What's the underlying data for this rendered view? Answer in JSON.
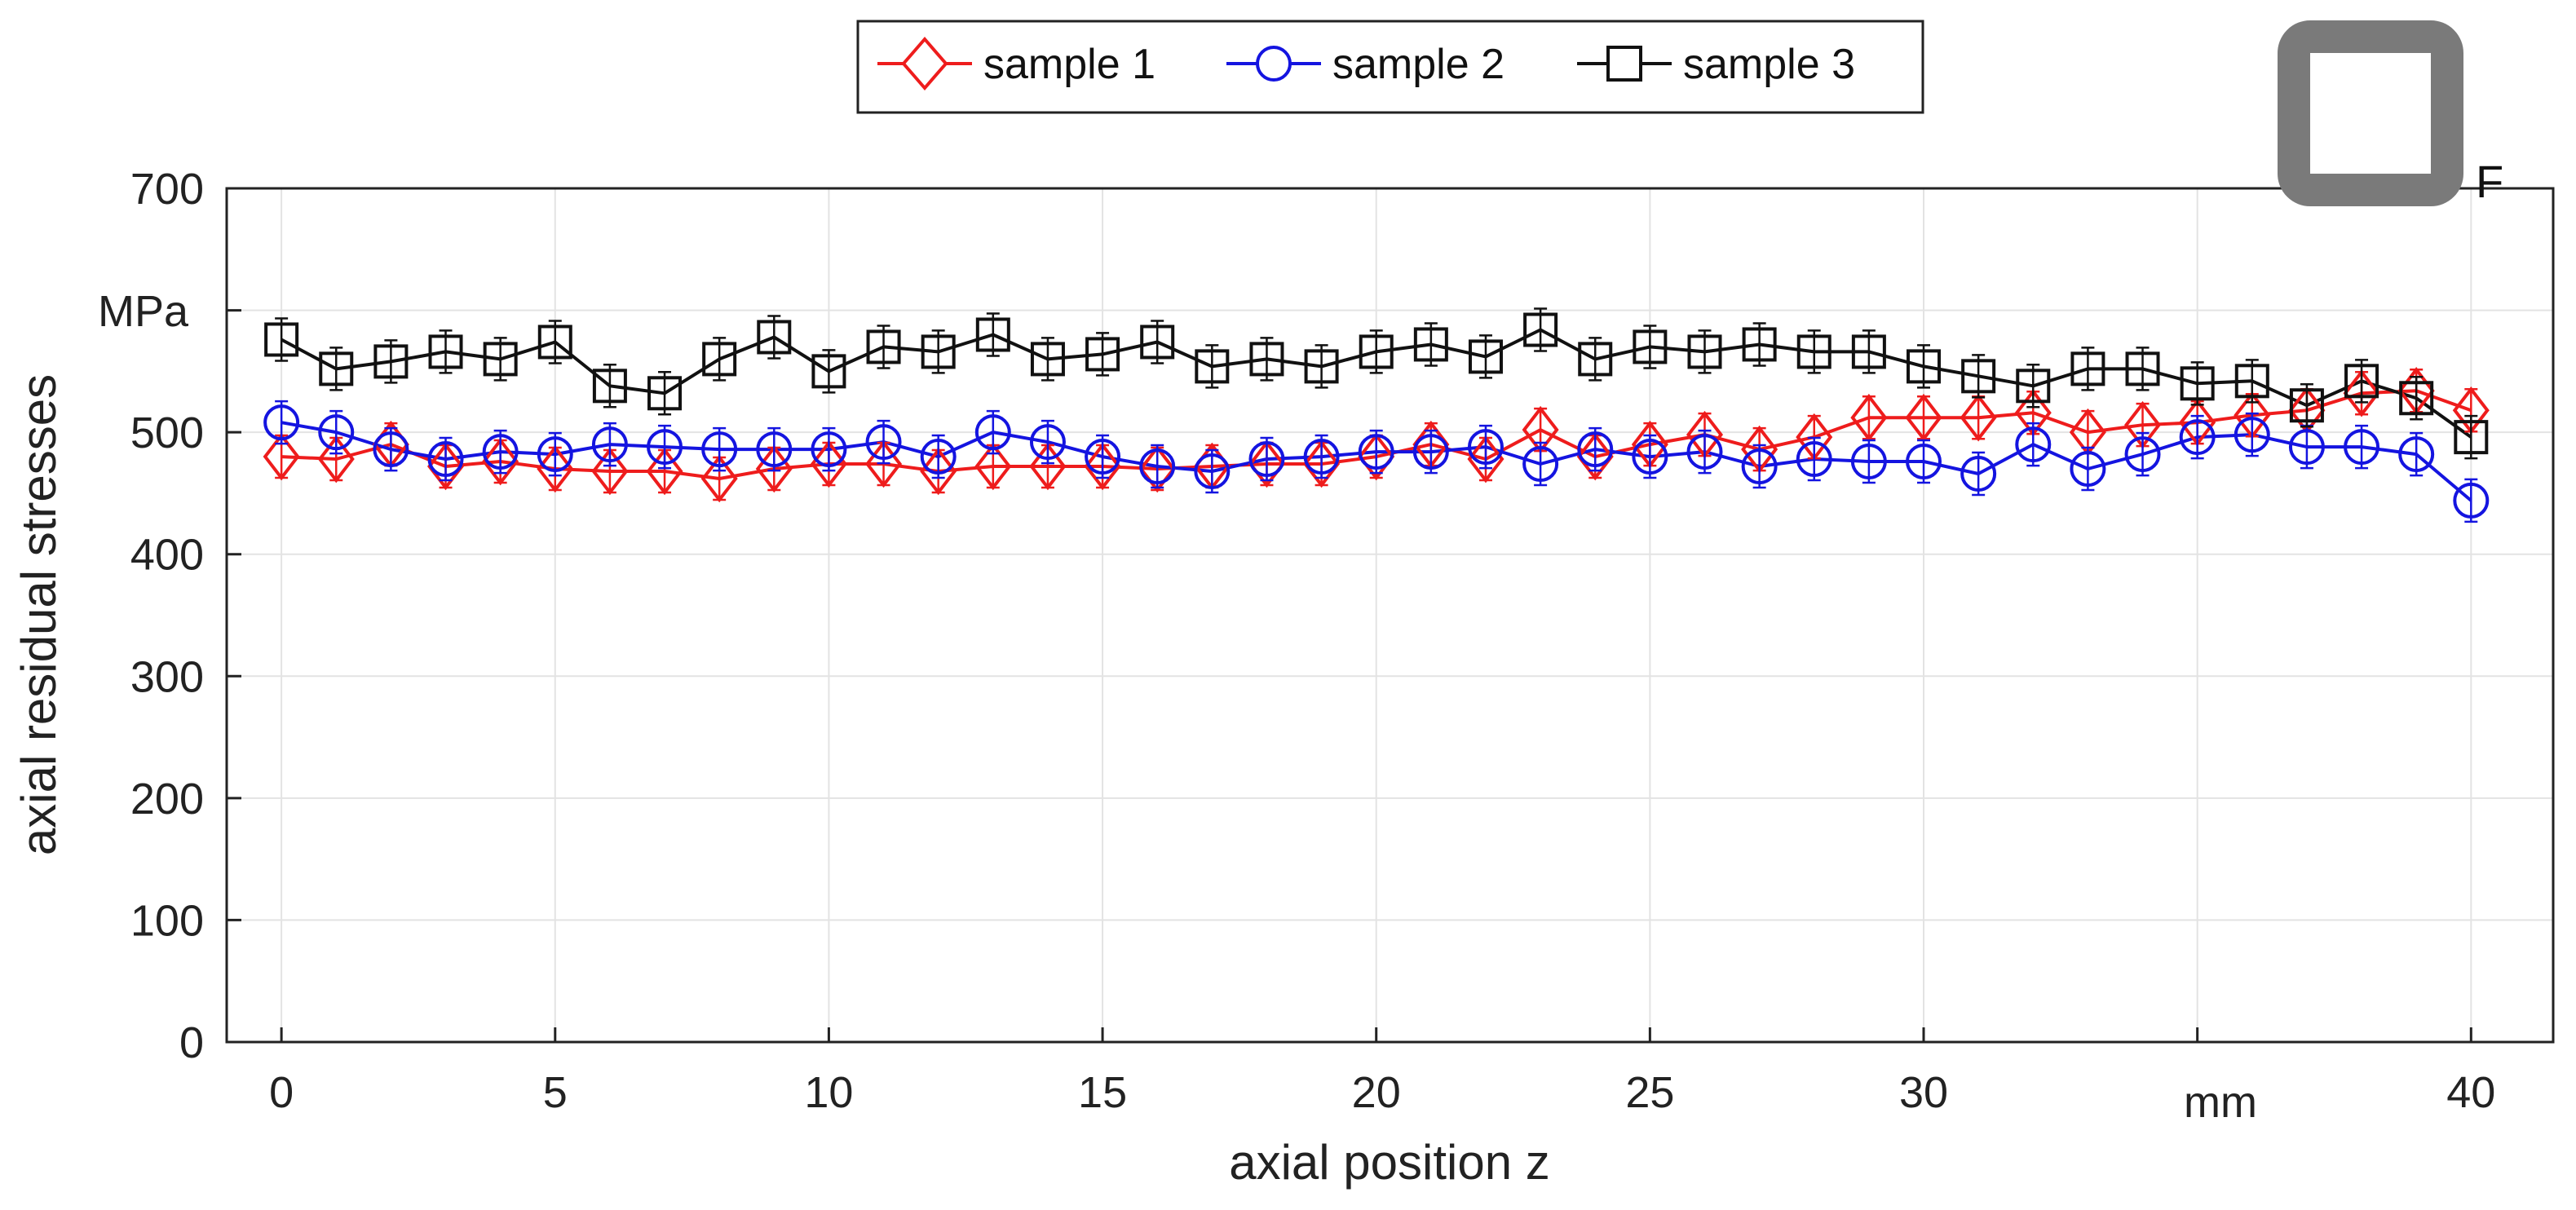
{
  "chart_data": {
    "type": "line",
    "title": "",
    "xlabel": "axial position z",
    "ylabel": "axial residual stresses",
    "x_unit": "mm",
    "y_unit": "MPa",
    "xlim": [
      -1,
      41.5
    ],
    "ylim": [
      0,
      700
    ],
    "x_ticks": [
      0,
      5,
      10,
      15,
      20,
      25,
      30,
      35,
      40
    ],
    "x_tick_labels": [
      "0",
      "5",
      "10",
      "15",
      "20",
      "25",
      "30",
      "",
      "40"
    ],
    "y_ticks": [
      0,
      100,
      200,
      300,
      400,
      500,
      600,
      700
    ],
    "y_tick_labels": [
      "0",
      "100",
      "200",
      "300",
      "400",
      "500",
      "",
      "700"
    ],
    "grid": true,
    "legend_position": "top-center",
    "profile_symbol_label": "F",
    "x": [
      0,
      1,
      2,
      3,
      4,
      5,
      6,
      7,
      8,
      9,
      10,
      11,
      12,
      13,
      14,
      15,
      16,
      17,
      18,
      19,
      20,
      21,
      22,
      23,
      24,
      25,
      26,
      27,
      28,
      29,
      30,
      31,
      32,
      33,
      34,
      35,
      36,
      37,
      38,
      39,
      40
    ],
    "series": [
      {
        "name": "sample 1",
        "color": "#ee1c1c",
        "marker": "diamond",
        "values": [
          480,
          478,
          490,
          472,
          476,
          470,
          468,
          468,
          462,
          470,
          474,
          474,
          468,
          472,
          472,
          472,
          470,
          472,
          474,
          474,
          480,
          490,
          478,
          502,
          480,
          490,
          498,
          486,
          496,
          512,
          512,
          512,
          516,
          500,
          506,
          508,
          514,
          518,
          532,
          534,
          518
        ]
      },
      {
        "name": "sample 2",
        "color": "#1414e0",
        "marker": "circle",
        "values": [
          508,
          500,
          486,
          478,
          484,
          482,
          490,
          488,
          486,
          486,
          486,
          492,
          480,
          500,
          492,
          480,
          472,
          468,
          478,
          480,
          484,
          484,
          488,
          474,
          486,
          480,
          484,
          472,
          478,
          476,
          476,
          466,
          490,
          470,
          482,
          496,
          498,
          488,
          488,
          482,
          444
        ]
      },
      {
        "name": "sample 3",
        "color": "#111111",
        "marker": "square",
        "values": [
          576,
          552,
          558,
          566,
          560,
          574,
          538,
          532,
          560,
          578,
          550,
          570,
          566,
          580,
          560,
          564,
          574,
          554,
          560,
          554,
          566,
          572,
          562,
          584,
          560,
          570,
          566,
          572,
          566,
          566,
          554,
          546,
          538,
          552,
          552,
          540,
          542,
          522,
          542,
          528,
          496
        ]
      }
    ]
  }
}
